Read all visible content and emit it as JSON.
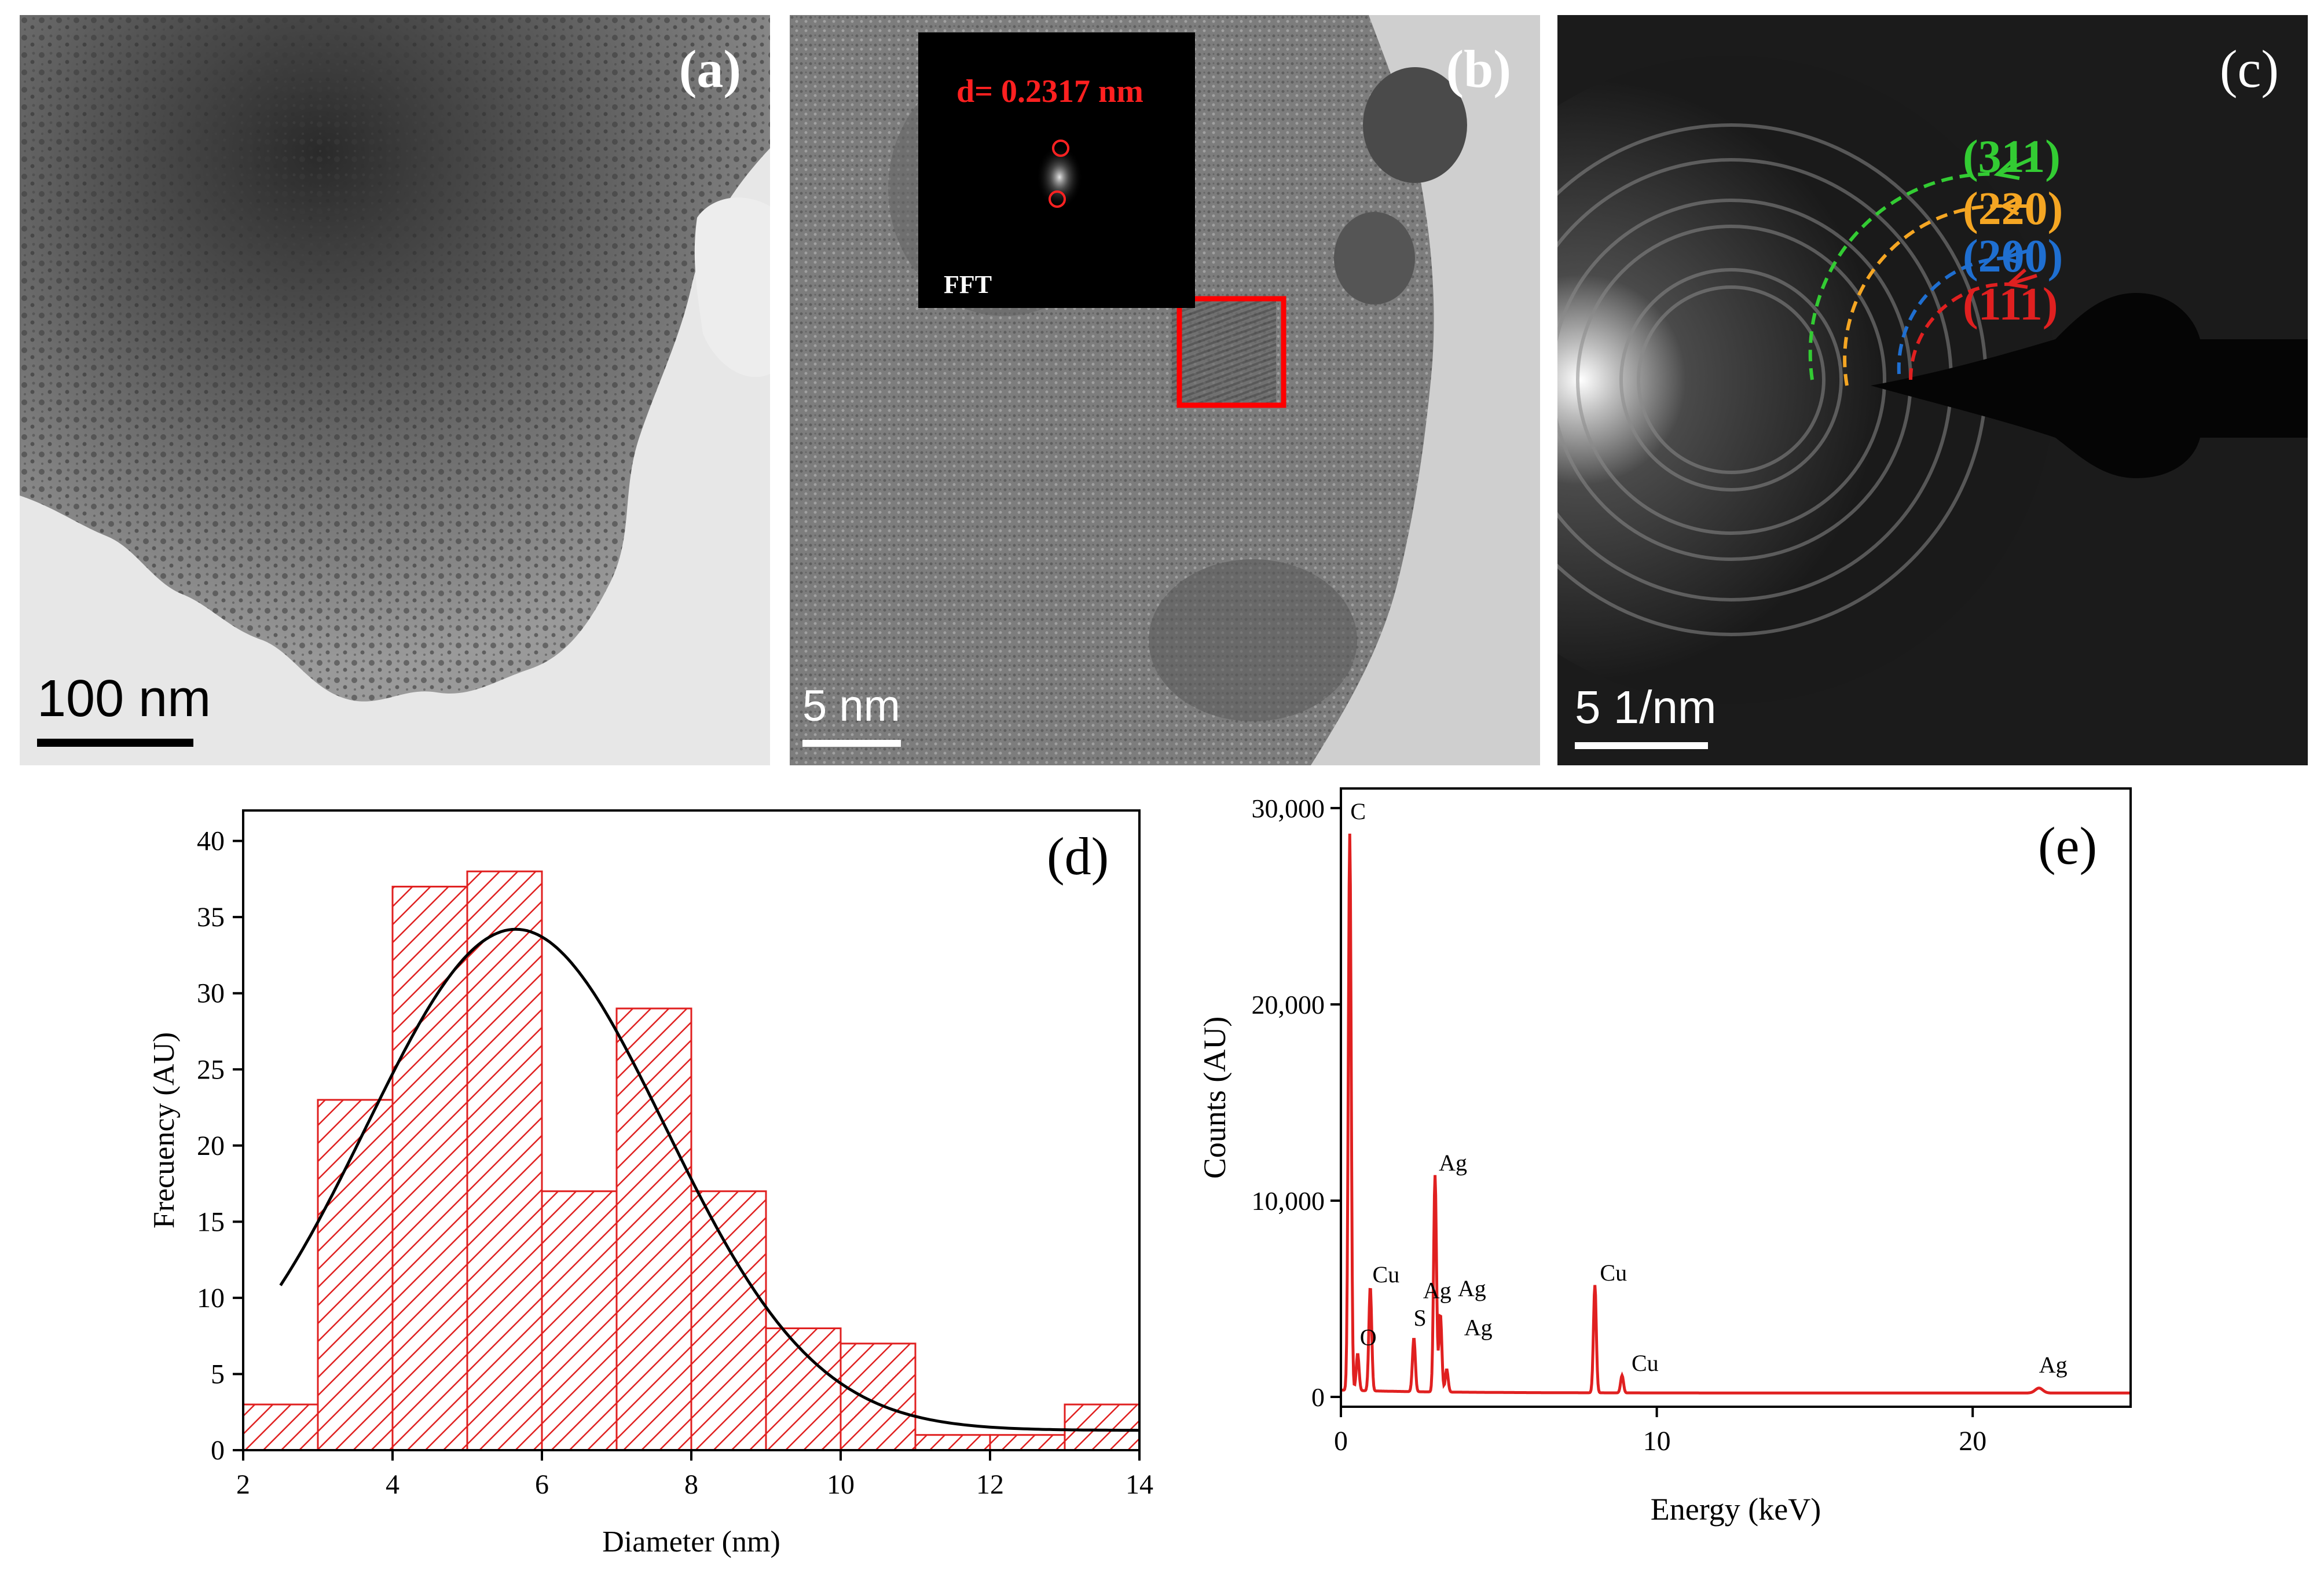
{
  "figure": {
    "panel_a": {
      "label": "(a)",
      "scale_bar": "100 nm"
    },
    "panel_b": {
      "label": "(b)",
      "scale_bar": "5 nm",
      "inset_d": "d= 0.2317 nm",
      "inset_label": "FFT"
    },
    "panel_c": {
      "label": "(c)",
      "scale_bar": "5 1/nm",
      "rings": [
        {
          "hkl": "(311)",
          "color": "#33cc33"
        },
        {
          "hkl": "(220)",
          "color": "#f5a623"
        },
        {
          "hkl": "(200)",
          "color": "#1f6fd1"
        },
        {
          "hkl": "(111)",
          "color": "#e02020"
        }
      ]
    }
  },
  "chart_data": [
    {
      "id": "d",
      "type": "bar",
      "panel_label": "(d)",
      "title": "",
      "xlabel": "Diameter (nm)",
      "ylabel": "Frecuency (AU)",
      "xlim": [
        2,
        14
      ],
      "ylim": [
        0,
        42
      ],
      "xticks": [
        2,
        4,
        6,
        8,
        10,
        12,
        14
      ],
      "yticks": [
        0,
        5,
        10,
        15,
        20,
        25,
        30,
        35,
        40
      ],
      "bin_edges": [
        2,
        3,
        4,
        5,
        6,
        7,
        8,
        9,
        10,
        11,
        12,
        13,
        14
      ],
      "values": [
        3,
        23,
        37,
        38,
        17,
        29,
        17,
        8,
        7,
        1,
        1,
        3
      ],
      "fit_curve": {
        "type": "gaussian",
        "x_range": [
          2.5,
          14
        ],
        "peak_x": 5.65,
        "peak_y": 34.2,
        "sigma": 2.0,
        "baseline": 1.3
      },
      "bar_color": "#e02020"
    },
    {
      "id": "e",
      "type": "line",
      "panel_label": "(e)",
      "title": "",
      "xlabel": "Energy (keV)",
      "ylabel": "Counts (AU)",
      "xlim": [
        0,
        25
      ],
      "ylim": [
        -500,
        31000
      ],
      "xticks": [
        0,
        10,
        20
      ],
      "yticks": [
        0,
        10000,
        20000,
        30000
      ],
      "ytick_labels": [
        "0",
        "10,000",
        "20,000",
        "30,000"
      ],
      "line_color": "#e02020",
      "peaks": [
        {
          "x": 0.28,
          "y": 28700,
          "label": "C"
        },
        {
          "x": 0.53,
          "y": 2200,
          "label": "O"
        },
        {
          "x": 0.93,
          "y": 5600,
          "label": "Cu"
        },
        {
          "x": 2.31,
          "y": 3000,
          "label": "S"
        },
        {
          "x": 2.98,
          "y": 11300,
          "label": "Ag"
        },
        {
          "x": 3.15,
          "y": 4200,
          "label": "Ag"
        },
        {
          "x": 3.35,
          "y": 1400,
          "label": "Ag"
        },
        {
          "x": 8.04,
          "y": 5700,
          "label": "Cu"
        },
        {
          "x": 8.9,
          "y": 1100,
          "label": "Cu"
        },
        {
          "x": 22.1,
          "y": 450,
          "label": "Ag"
        }
      ],
      "peak_labels": [
        {
          "text": "C",
          "x": 0.3,
          "y": 29200
        },
        {
          "text": "Cu",
          "x": 1.0,
          "y": 5600
        },
        {
          "text": "O",
          "x": 0.6,
          "y": 2400
        },
        {
          "text": "Ag",
          "x": 2.6,
          "y": 4800
        },
        {
          "text": "S",
          "x": 2.3,
          "y": 3400
        },
        {
          "text": "Ag",
          "x": 3.1,
          "y": 11300
        },
        {
          "text": "Ag",
          "x": 3.7,
          "y": 4900
        },
        {
          "text": "Ag",
          "x": 3.9,
          "y": 2900
        },
        {
          "text": "Cu",
          "x": 8.2,
          "y": 5700
        },
        {
          "text": "Cu",
          "x": 9.2,
          "y": 1100
        },
        {
          "text": "Ag",
          "x": 22.1,
          "y": 1000
        }
      ]
    }
  ]
}
